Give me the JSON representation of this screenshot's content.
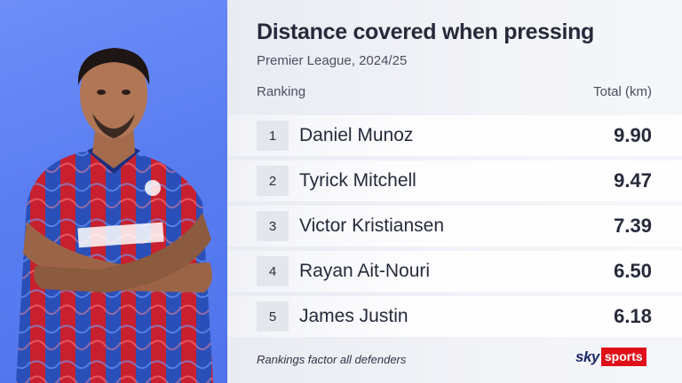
{
  "title": "Distance covered when pressing",
  "subtitle": "Premier League, 2024/25",
  "columns": {
    "left": "Ranking",
    "right": "Total (km)"
  },
  "rows": [
    {
      "rank": "1",
      "name": "Daniel Munoz",
      "value": "9.90"
    },
    {
      "rank": "2",
      "name": "Tyrick Mitchell",
      "value": "9.47"
    },
    {
      "rank": "3",
      "name": "Victor Kristiansen",
      "value": "7.39"
    },
    {
      "rank": "4",
      "name": "Rayan Ait-Nouri",
      "value": "6.50"
    },
    {
      "rank": "5",
      "name": "James Justin",
      "value": "6.18"
    }
  ],
  "footnote": "Rankings factor all defenders",
  "logo": {
    "sky": "sky",
    "sports": "sports"
  },
  "colors": {
    "accent_panel": "#5a7ef2",
    "logo_red": "#e0101a",
    "text": "#262a3a"
  }
}
